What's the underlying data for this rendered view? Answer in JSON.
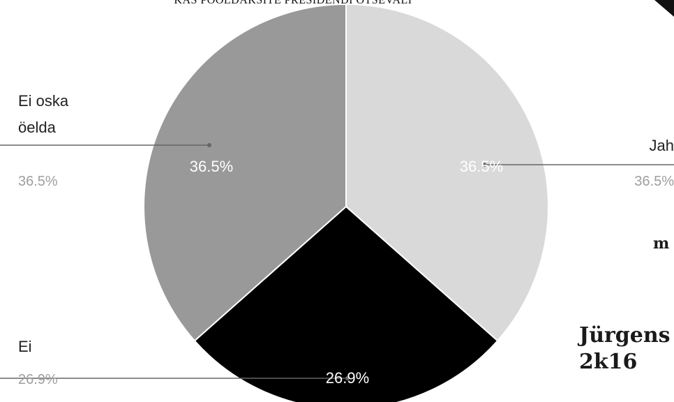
{
  "colors": {
    "background": "#ffffff",
    "slice_jah": "#d9d9d9",
    "slice_ei": "#000000",
    "slice_ei_oska_oelda": "#999999",
    "leader_line": "#666666",
    "label_dark": "#222222",
    "label_light": "#9e9e9e"
  },
  "header": {
    "title": "KAS POOLDAKSITE PRESIDENDI OTSEVALI"
  },
  "overlay": {
    "fragment_m": "m",
    "name_line1": "Jürgens",
    "name_line2": "2k16"
  },
  "chart_data": {
    "type": "pie",
    "title": "KAS POOLDAKSITE PRESIDENDI OTSEVALI",
    "slices": [
      {
        "label": "Jah",
        "value": 36.5,
        "pct_label": "36.5%",
        "color": "#d9d9d9"
      },
      {
        "label": "Ei",
        "value": 26.9,
        "pct_label": "26.9%",
        "color": "#000000"
      },
      {
        "label": "Ei oska öelda",
        "value": 36.5,
        "pct_label": "36.5%",
        "color": "#999999"
      }
    ],
    "start_angle": "12 o'clock, clockwise",
    "legend": "none (labels outside slices with leader lines)"
  }
}
